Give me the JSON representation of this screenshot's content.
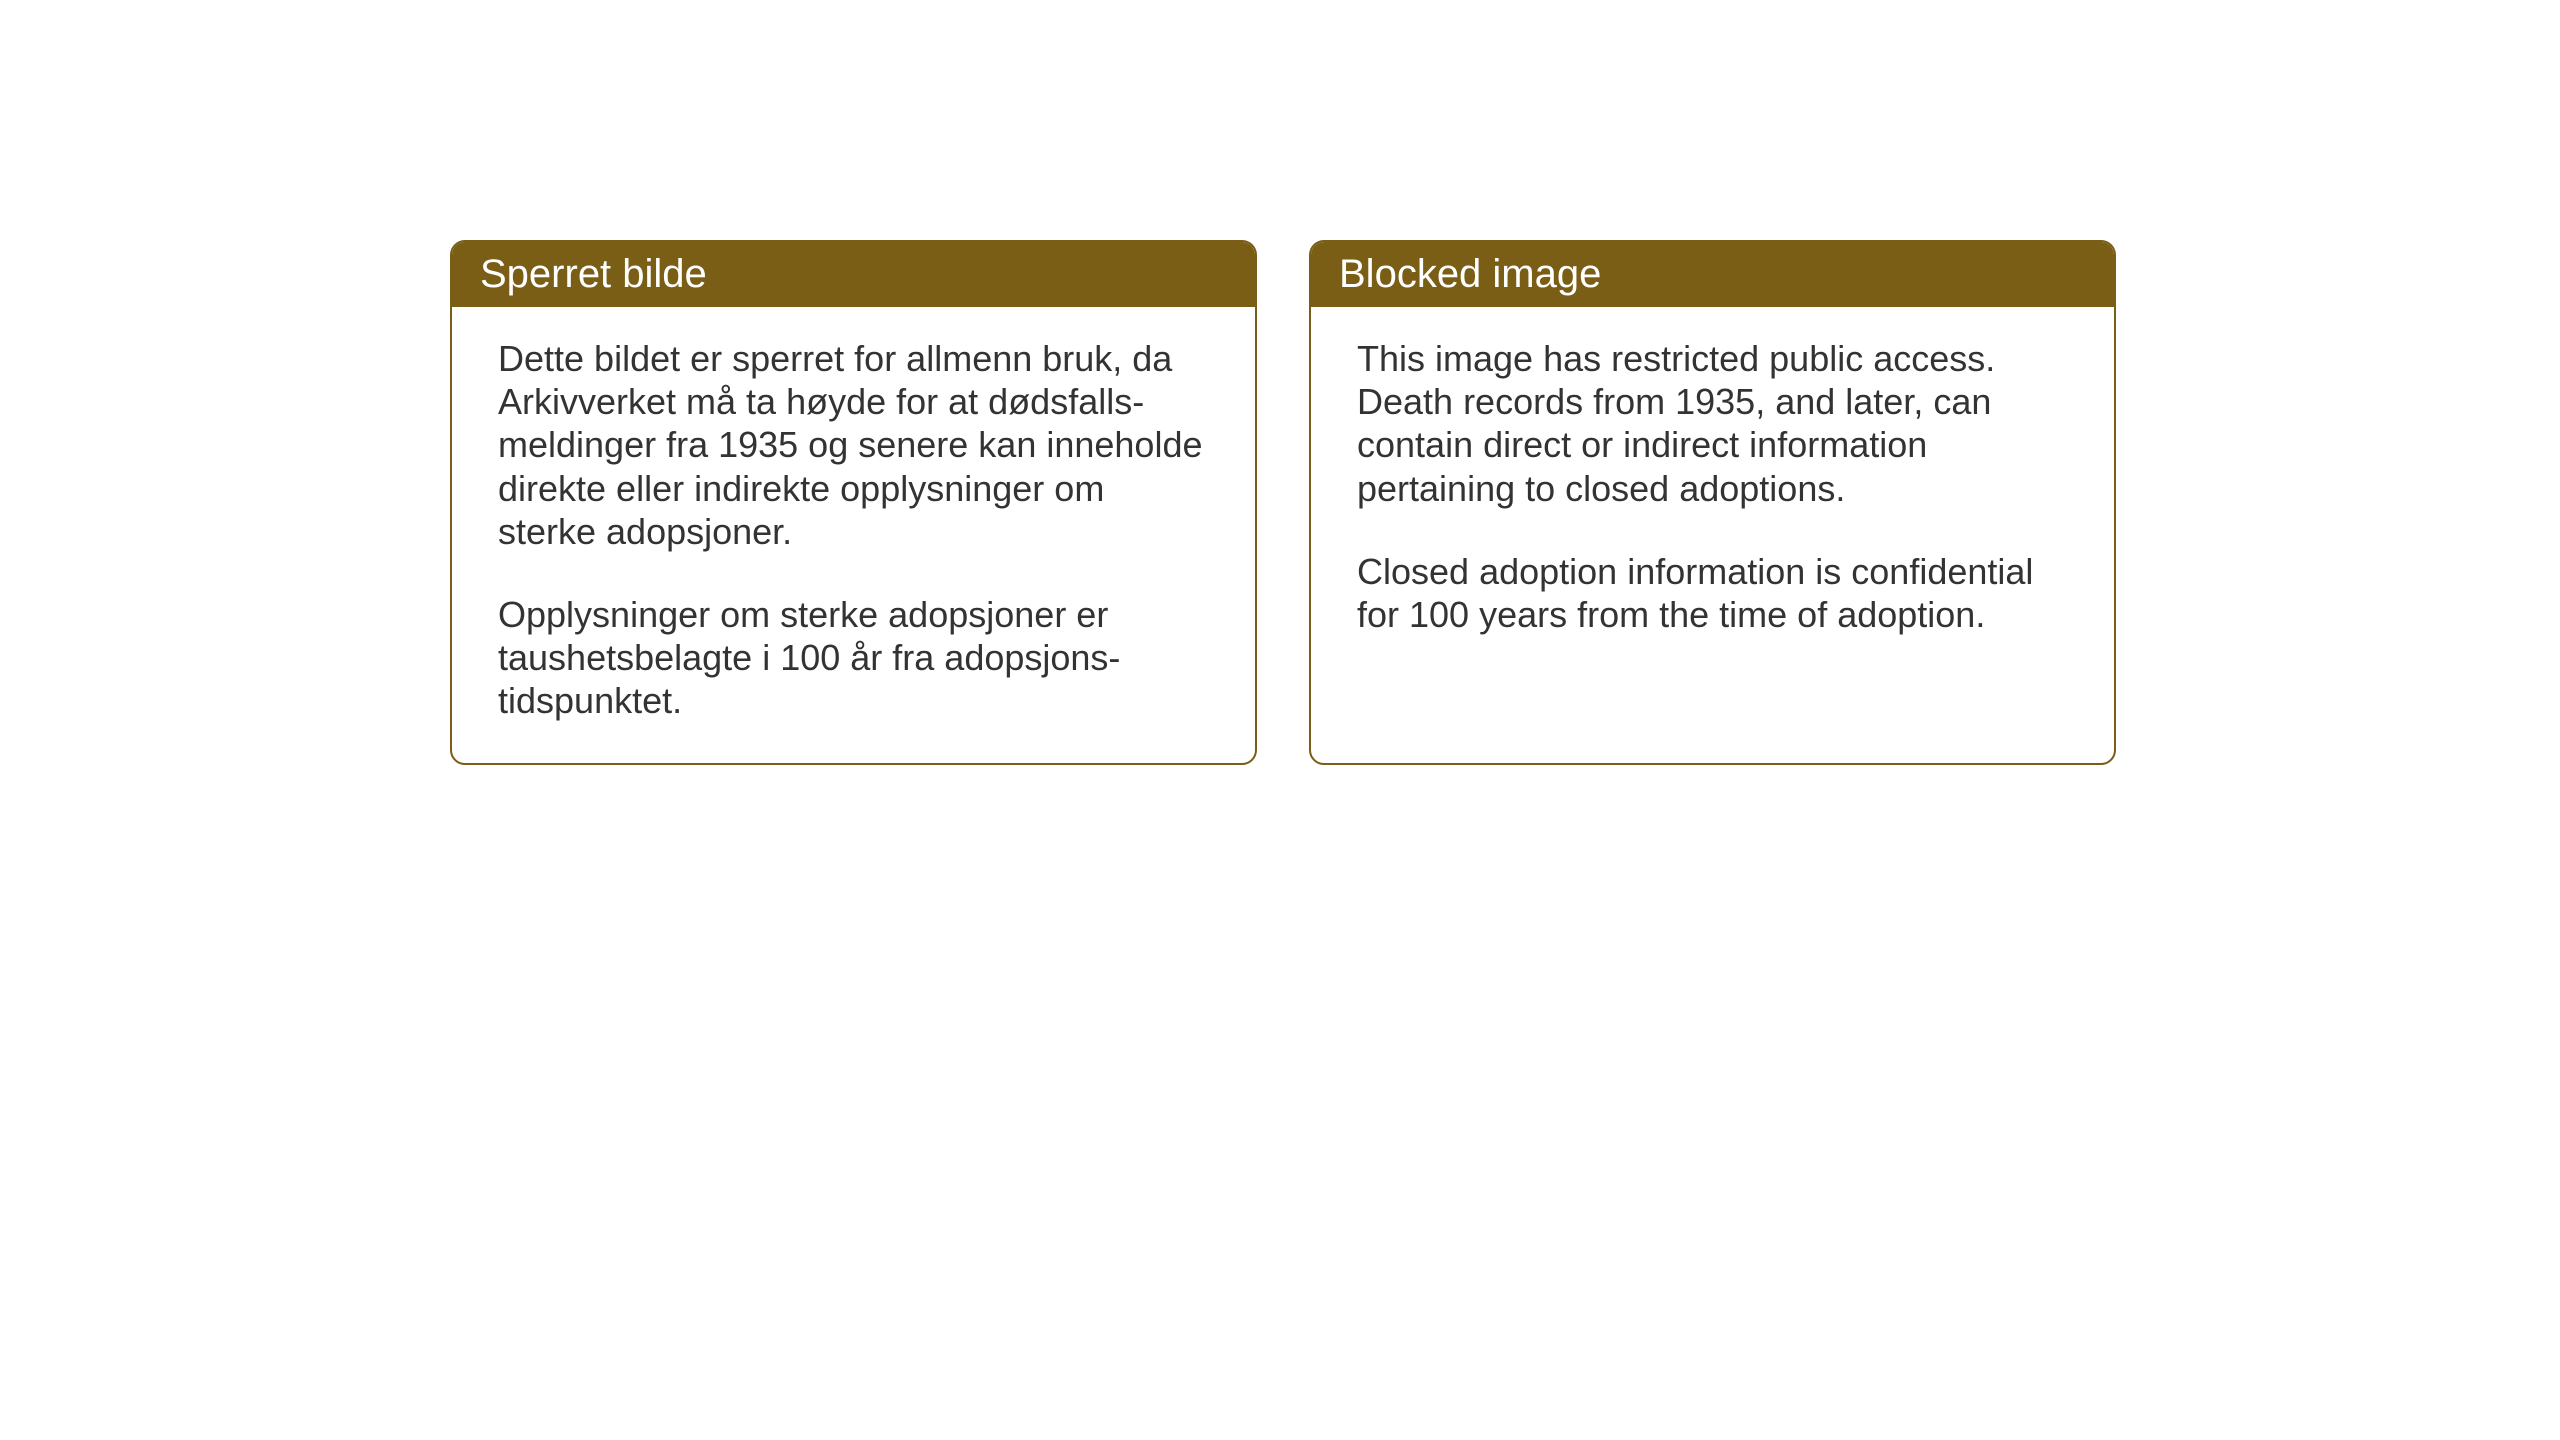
{
  "page": {
    "background_color": "#ffffff"
  },
  "cards": {
    "norwegian": {
      "title": "Sperret bilde",
      "paragraph1": "Dette bildet er sperret for allmenn bruk, da Arkivverket må ta høyde for at dødsfalls-meldinger fra 1935 og senere kan inneholde direkte eller indirekte opplysninger om sterke adopsjoner.",
      "paragraph2": "Opplysninger om sterke adopsjoner er taushetsbelagte i 100 år fra adopsjons-tidspunktet."
    },
    "english": {
      "title": "Blocked image",
      "paragraph1": "This image has restricted public access. Death records from 1935, and later, can contain direct or indirect information pertaining to closed adoptions.",
      "paragraph2": "Closed adoption information is confidential for 100 years from the time of adoption."
    }
  },
  "styling": {
    "card_border_color": "#7a5e15",
    "header_background_color": "#7a5e15",
    "header_text_color": "#ffffff",
    "body_text_color": "#333333",
    "card_background_color": "#ffffff",
    "header_font_size": 40,
    "body_font_size": 36,
    "border_radius": 15,
    "border_width": 2
  }
}
